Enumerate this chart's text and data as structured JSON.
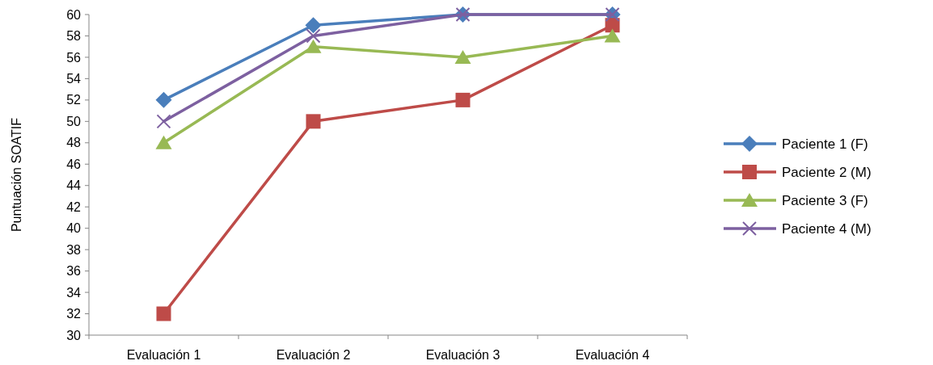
{
  "chart_data": {
    "type": "line",
    "ylabel": "Puntuación SOATIF",
    "categories": [
      "Evaluación 1",
      "Evaluación 2",
      "Evaluación 3",
      "Evaluación 4"
    ],
    "series": [
      {
        "name": "Paciente 1 (F)",
        "color": "#4a7ebb",
        "marker": "diamond",
        "values": [
          52,
          59,
          60,
          60
        ]
      },
      {
        "name": "Paciente 2 (M)",
        "color": "#be4b48",
        "marker": "square",
        "values": [
          32,
          50,
          52,
          59
        ]
      },
      {
        "name": "Paciente 3 (F)",
        "color": "#98b954",
        "marker": "triangle",
        "values": [
          48,
          57,
          56,
          58
        ]
      },
      {
        "name": "Paciente 4 (M)",
        "color": "#7d60a0",
        "marker": "cross",
        "values": [
          50,
          58,
          60,
          60
        ]
      }
    ],
    "ylim": [
      30,
      60
    ],
    "yticks": [
      30,
      32,
      34,
      36,
      38,
      40,
      42,
      44,
      46,
      48,
      50,
      52,
      54,
      56,
      58,
      60
    ],
    "grid": false,
    "legend": "right",
    "line_style": "solid"
  }
}
